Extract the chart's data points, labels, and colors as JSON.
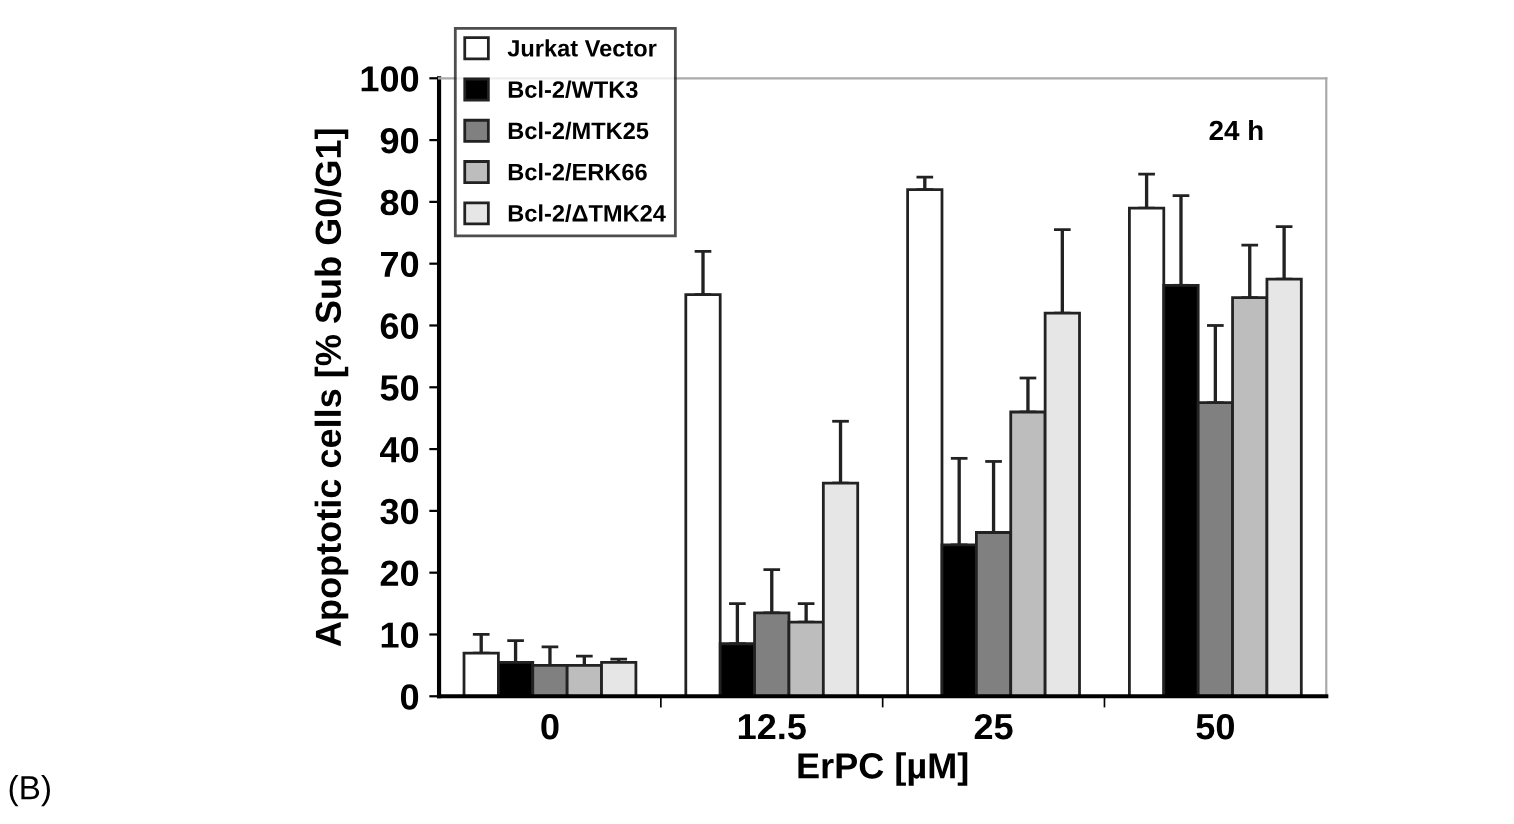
{
  "chart_data": {
    "type": "bar",
    "xlabel": "ErPC [µM]",
    "ylabel": "Apoptotic cells [% Sub G0/G1]",
    "categories": [
      "0",
      "12.5",
      "25",
      "50"
    ],
    "series": [
      {
        "name": "Jurkat Vector",
        "color": "#ffffff",
        "values": [
          7,
          65,
          82,
          79
        ],
        "errors": [
          [
            7,
            10
          ],
          [
            65,
            72
          ],
          [
            82,
            84
          ],
          [
            79,
            84.5
          ]
        ]
      },
      {
        "name": "Bcl-2/WTK3",
        "color": "#000000",
        "values": [
          5.5,
          8.5,
          24.5,
          66.5
        ],
        "errors": [
          [
            5.5,
            9
          ],
          [
            8.5,
            15
          ],
          [
            24.5,
            38.5
          ],
          [
            66.5,
            81
          ]
        ]
      },
      {
        "name": "Bcl-2/MTK25",
        "color": "#808080",
        "values": [
          5,
          13.5,
          26.5,
          47.5
        ],
        "errors": [
          [
            5,
            8
          ],
          [
            13.5,
            20.5
          ],
          [
            26.5,
            38
          ],
          [
            47.5,
            60
          ]
        ]
      },
      {
        "name": "Bcl-2/ERK66",
        "color": "#bdbdbd",
        "values": [
          5,
          12,
          46,
          64.5
        ],
        "errors": [
          [
            5,
            6.5
          ],
          [
            12,
            15
          ],
          [
            46,
            51.5
          ],
          [
            64.5,
            73
          ]
        ]
      },
      {
        "name": "Bcl-2/ΔTMK24",
        "color": "#e6e6e6",
        "values": [
          5.5,
          34.5,
          62,
          67.5
        ],
        "errors": [
          [
            5.5,
            6
          ],
          [
            34.5,
            44.5
          ],
          [
            62,
            75.5
          ],
          [
            67.5,
            76
          ]
        ]
      }
    ],
    "ylim": [
      0,
      100
    ],
    "yticks": [
      0,
      10,
      20,
      30,
      40,
      50,
      60,
      70,
      80,
      90,
      100
    ],
    "grid": false,
    "legend": "top left",
    "annotations": [
      "24 h",
      "(B)"
    ]
  }
}
